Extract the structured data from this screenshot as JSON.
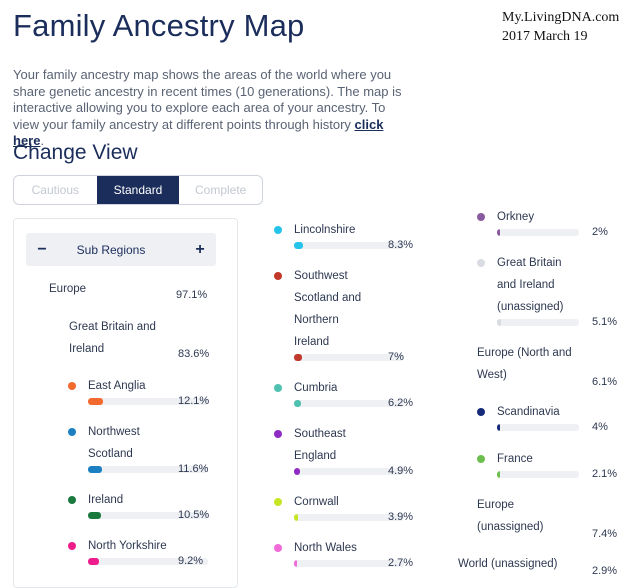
{
  "title": "Family Ancestry Map",
  "stamp": {
    "line1": "My.LivingDNA.com",
    "line2": "2017 March 19"
  },
  "intro": {
    "text": "Your family ancestry map shows the areas of the world where you share genetic ancestry in recent times (10 generations). The map is interactive allowing you to explore each area of your ancestry. To view your family ancestry at different points through history ",
    "link": "click here",
    "end": "."
  },
  "change_view": "Change View",
  "view_tabs": [
    {
      "label": "Cautious"
    },
    {
      "label": "Standard"
    },
    {
      "label": "Complete"
    }
  ],
  "subregions": {
    "minus": "−",
    "label": "Sub Regions",
    "plus": "+"
  },
  "regions": [
    {
      "lines": [
        "Europe"
      ],
      "pct": "97.1%"
    },
    {
      "lines": [
        "Great Britain and",
        "Ireland"
      ],
      "pct": "83.6%"
    },
    {
      "lines": [
        "Europe (North and",
        "West)"
      ],
      "pct": "6.1%"
    },
    {
      "lines": [
        "Europe",
        "(unassigned)"
      ],
      "pct": "7.4%"
    },
    {
      "lines": [
        "World (unassigned)"
      ],
      "pct": "2.9%"
    }
  ],
  "subs": [
    {
      "lines": [
        "East Anglia"
      ],
      "pct": "12.1%",
      "value": 12.1,
      "color": "#f26a2e"
    },
    {
      "lines": [
        "Northwest",
        "Scotland"
      ],
      "pct": "11.6%",
      "value": 11.6,
      "color": "#1b7fc1"
    },
    {
      "lines": [
        "Ireland"
      ],
      "pct": "10.5%",
      "value": 10.5,
      "color": "#1a7a3e"
    },
    {
      "lines": [
        "North Yorkshire"
      ],
      "pct": "9.2%",
      "value": 9.2,
      "color": "#ee1c8c"
    },
    {
      "lines": [
        "Lincolnshire"
      ],
      "pct": "8.3%",
      "value": 8.3,
      "color": "#23c3ea"
    },
    {
      "lines": [
        "Southwest",
        "Scotland and",
        "Northern",
        "Ireland"
      ],
      "pct": "7%",
      "value": 7,
      "color": "#c0392b"
    },
    {
      "lines": [
        "Cumbria"
      ],
      "pct": "6.2%",
      "value": 6.2,
      "color": "#4fc1b0"
    },
    {
      "lines": [
        "Southeast",
        "England"
      ],
      "pct": "4.9%",
      "value": 4.9,
      "color": "#8e2bc4"
    },
    {
      "lines": [
        "Cornwall"
      ],
      "pct": "3.9%",
      "value": 3.9,
      "color": "#c6e625"
    },
    {
      "lines": [
        "North Wales"
      ],
      "pct": "2.7%",
      "value": 2.7,
      "color": "#f06ad8"
    },
    {
      "lines": [
        "Orkney"
      ],
      "pct": "2%",
      "value": 2,
      "color": "#8a5a9e"
    },
    {
      "lines": [
        "Great Britain",
        "and Ireland",
        "(unassigned)"
      ],
      "pct": "5.1%",
      "value": 5.1,
      "color": "#d9dce1"
    },
    {
      "lines": [
        "Scandinavia"
      ],
      "pct": "4%",
      "value": 4,
      "color": "#152a78"
    },
    {
      "lines": [
        "France"
      ],
      "pct": "2.1%",
      "value": 2.1,
      "color": "#6cbf4e"
    }
  ]
}
